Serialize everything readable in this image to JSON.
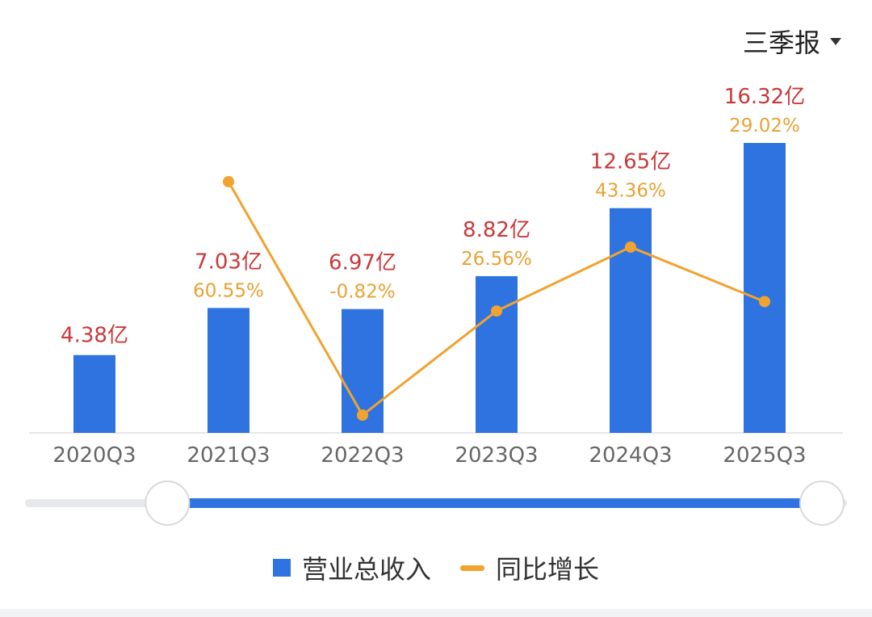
{
  "period_selector": {
    "label": "三季报",
    "icon": "caret-down-icon"
  },
  "colors": {
    "bar": "#2f73e0",
    "line": "#f0a32f",
    "value_label": "#c9393a",
    "growth_label": "#e8a233",
    "axis_text": "#666666",
    "slider_track": "#e6e8ec",
    "slider_range": "#2f73e0"
  },
  "chart_data": {
    "type": "bar",
    "categories": [
      "2020Q3",
      "2021Q3",
      "2022Q3",
      "2023Q3",
      "2024Q3",
      "2025Q3"
    ],
    "series": [
      {
        "name": "营业总收入",
        "type": "bar",
        "values": [
          4.38,
          7.03,
          6.97,
          8.82,
          12.65,
          16.32
        ],
        "labels": [
          "4.38亿",
          "7.03亿",
          "6.97亿",
          "8.82亿",
          "12.65亿",
          "16.32亿"
        ]
      },
      {
        "name": "同比增长",
        "type": "line",
        "values": [
          null,
          60.55,
          -0.82,
          26.56,
          43.36,
          29.02
        ],
        "labels": [
          "",
          "60.55%",
          "-0.82%",
          "26.56%",
          "43.36%",
          "29.02%"
        ]
      }
    ],
    "legend": [
      "营业总收入",
      "同比增长"
    ],
    "legend_position": "bottom",
    "y_bar_range": [
      0,
      16.32
    ],
    "y_line_range": [
      -0.82,
      60.55
    ],
    "grid": false
  },
  "slider": {
    "start": 0.17,
    "end": 1.0
  }
}
